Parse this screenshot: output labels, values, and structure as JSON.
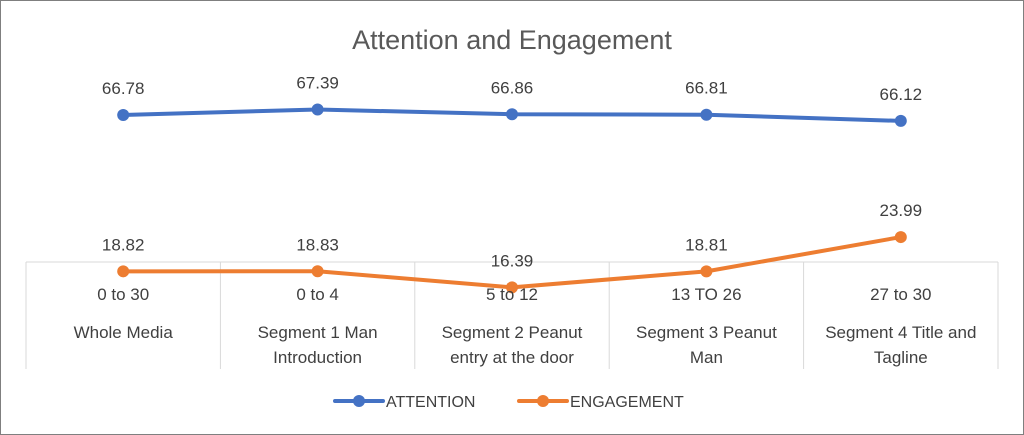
{
  "chart_data": {
    "type": "line",
    "title": "Attention and Engagement",
    "categories": [
      {
        "range": "0 to 30",
        "name": [
          "Whole Media"
        ]
      },
      {
        "range": "0 to 4",
        "name": [
          "Segment 1 Man",
          "Introduction"
        ]
      },
      {
        "range": "5 to 12",
        "name": [
          "Segment 2  Peanut",
          "entry at the door"
        ]
      },
      {
        "range": "13 TO 26",
        "name": [
          "Segment 3 Peanut",
          "Man"
        ]
      },
      {
        "range": "27 to 30",
        "name": [
          "Segment 4 Title and",
          "Tagline"
        ]
      }
    ],
    "series": [
      {
        "name": "ATTENTION",
        "color": "#4472C4",
        "values": [
          66.78,
          67.39,
          66.86,
          66.81,
          66.12
        ]
      },
      {
        "name": "ENGAGEMENT",
        "color": "#ED7D31",
        "values": [
          18.82,
          18.83,
          16.39,
          18.81,
          23.99
        ]
      }
    ],
    "legend": "bottom-center"
  }
}
